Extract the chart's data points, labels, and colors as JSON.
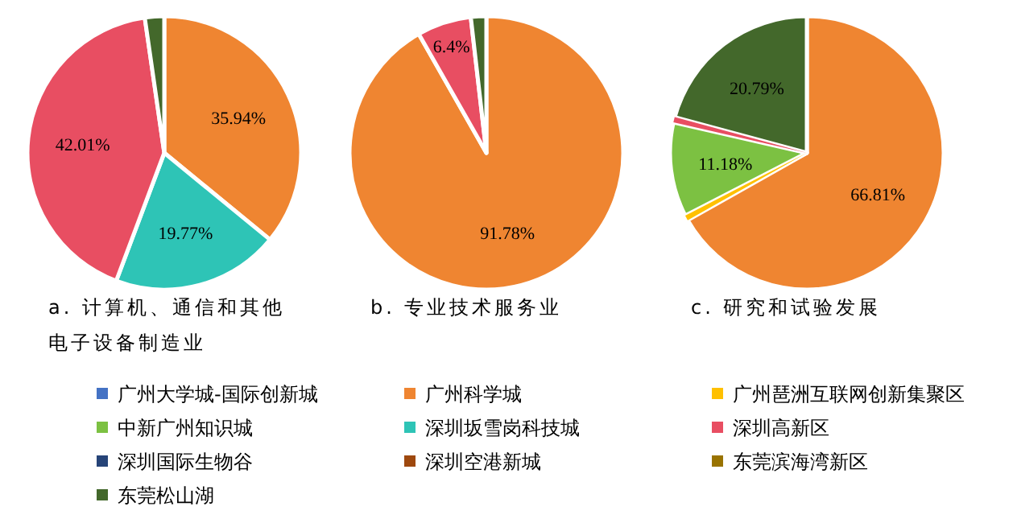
{
  "chart_data": [
    {
      "type": "pie",
      "title": "a. 计算机、通信和其他电子设备制造业",
      "legend": "bottom",
      "categories": [
        "广州大学城-国际创新城",
        "广州科学城",
        "广州琶洲互联网创新集聚区",
        "中新广州知识城",
        "深圳坂雪岗科技城",
        "深圳高新区",
        "深圳国际生物谷",
        "深圳空港新城",
        "东莞滨海湾新区",
        "东莞松山湖"
      ],
      "colors": [
        "#4472c4",
        "#ef8531",
        "#ffc000",
        "#7cc142",
        "#2ec4b6",
        "#e84e62",
        "#264478",
        "#9e480e",
        "#997300",
        "#43682b"
      ],
      "values": [
        null,
        35.94,
        null,
        null,
        19.77,
        42.01,
        null,
        null,
        null,
        2.28
      ],
      "value_labels": [
        null,
        "35.94%",
        null,
        null,
        "19.77%",
        "42.01%",
        null,
        null,
        null,
        null
      ]
    },
    {
      "type": "pie",
      "title": "b. 专业技术服务业",
      "categories": [
        null,
        null,
        null
      ],
      "colors": [
        "#ef8531",
        "#e84e62",
        "#43682b"
      ],
      "values": [
        91.78,
        6.4,
        1.82
      ],
      "value_labels": [
        "91.78%",
        "6.4%",
        null
      ]
    },
    {
      "type": "pie",
      "title": "c. 研究和试验发展",
      "categories": [
        null,
        null,
        null,
        null,
        null
      ],
      "colors": [
        "#ef8531",
        "#ffc000",
        "#7cc142",
        "#e84e62",
        "#43682b"
      ],
      "values": [
        66.81,
        0.6,
        11.18,
        0.62,
        20.79
      ],
      "value_labels": [
        "66.81%",
        null,
        "11.18%",
        null,
        "20.79%"
      ]
    }
  ]
}
